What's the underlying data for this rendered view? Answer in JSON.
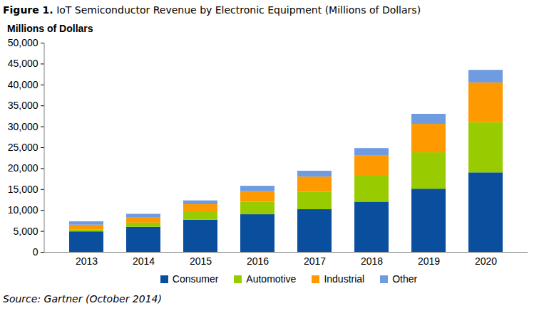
{
  "chart_data": {
    "type": "bar",
    "title": "Figure 1. IoT Semiconductor Revenue by Electronic Equipment (Millions of Dollars)",
    "y_label": "Millions of Dollars",
    "source": "Source: Gartner (October 2014)",
    "stacked": true,
    "grid": false,
    "legend": "bottom",
    "categories": [
      "2013",
      "2014",
      "2015",
      "2016",
      "2017",
      "2018",
      "2019",
      "2020"
    ],
    "series": [
      {
        "name": "Consumer",
        "color": "#0a4f9e",
        "values": [
          4900,
          6000,
          7700,
          9000,
          10200,
          12000,
          15100,
          19000
        ]
      },
      {
        "name": "Automotive",
        "color": "#99cc00",
        "values": [
          500,
          1000,
          2000,
          3000,
          4200,
          6200,
          8700,
          12000
        ]
      },
      {
        "name": "Industrial",
        "color": "#ff9900",
        "values": [
          1100,
          1200,
          1700,
          2500,
          3600,
          4800,
          6800,
          9500
        ]
      },
      {
        "name": "Other",
        "color": "#6f9be0",
        "values": [
          800,
          900,
          900,
          1300,
          1400,
          1800,
          2400,
          3000
        ]
      }
    ],
    "ylim": [
      0,
      50000
    ],
    "yticks": [
      0,
      {
        "value": 5000,
        "label": "5,000"
      },
      {
        "value": 10000,
        "label": "10,000"
      },
      {
        "value": 15000,
        "label": "15,000"
      },
      {
        "value": 20000,
        "label": "20,000"
      },
      {
        "value": 25000,
        "label": "25,000"
      },
      {
        "value": 30000,
        "label": "30,000"
      },
      {
        "value": 35000,
        "label": "35,000"
      },
      {
        "value": 40000,
        "label": "40,000"
      },
      {
        "value": 45000,
        "label": "45,000"
      },
      {
        "value": 50000,
        "label": "50,000"
      }
    ]
  }
}
